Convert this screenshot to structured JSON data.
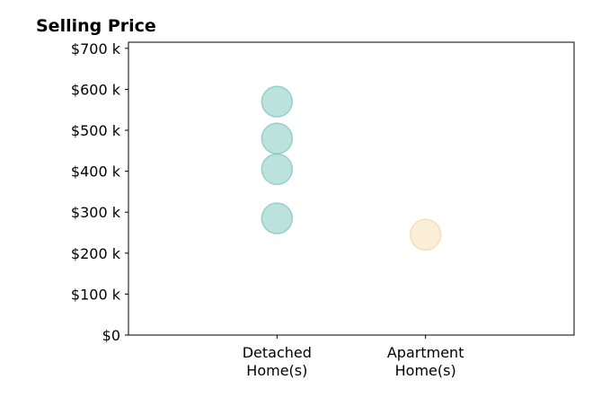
{
  "chart_data": {
    "type": "scatter",
    "title": "Selling Price",
    "xlabel": "",
    "ylabel": "",
    "categories": [
      [
        "Detached",
        "Home(s)"
      ],
      [
        "Apartment",
        "Home(s)"
      ]
    ],
    "yticks": [
      0,
      100000,
      200000,
      300000,
      400000,
      500000,
      600000,
      700000
    ],
    "ytick_labels": [
      "$0",
      "$100 k",
      "$200 k",
      "$300 k",
      "$400 k",
      "$500 k",
      "$600 k",
      "$700 k"
    ],
    "ylim": [
      0,
      715000
    ],
    "xlim": [
      -1,
      2
    ],
    "grid": false,
    "series": [
      {
        "category_index": 0,
        "color": "#8fcfc8",
        "stroke": "#7cc2ba",
        "values": [
          570000,
          480000,
          405000,
          285000
        ]
      },
      {
        "category_index": 1,
        "color": "#f6e2bd",
        "stroke": "#efd6a4",
        "values": [
          245000
        ]
      }
    ]
  }
}
